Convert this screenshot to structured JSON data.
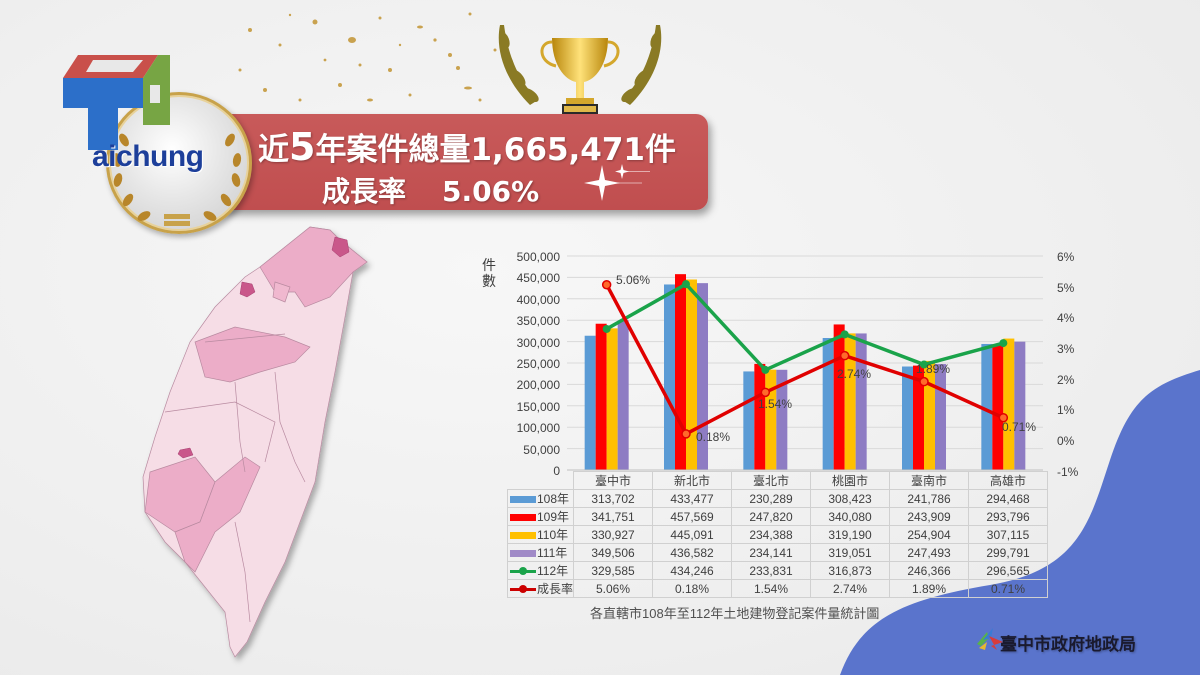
{
  "banner": {
    "line1_prefix": "近",
    "line1_number": "5",
    "line1_suffix": "年案件總量1,665,471件",
    "line2_label": "成長率",
    "line2_value": "5.06%"
  },
  "logo": {
    "text": "aichung"
  },
  "footer": {
    "organization": "臺中市政府地政局"
  },
  "colors": {
    "banner": "#c24f50",
    "y108": "#5b9bd5",
    "y109": "#ff0000",
    "y110": "#ffc000",
    "y111": "#8e7cc3",
    "y112": "#1aa34a",
    "growth": "#e00000",
    "wave": "#5a74cc"
  },
  "chart_data": {
    "type": "bar",
    "title": "各直轄市108年至112年土地建物登記案件量統計圖",
    "xlabel": "",
    "ylabel": "件數",
    "y2label": "",
    "categories": [
      "臺中市",
      "新北市",
      "臺北市",
      "桃園市",
      "臺南市",
      "高雄市"
    ],
    "ylim": [
      0,
      500000
    ],
    "yticks": [
      "0",
      "50,000",
      "100,000",
      "150,000",
      "200,000",
      "250,000",
      "300,000",
      "350,000",
      "400,000",
      "450,000",
      "500,000"
    ],
    "y2lim": [
      -0.01,
      0.06
    ],
    "y2ticks": [
      "-1%",
      "0%",
      "1%",
      "2%",
      "3%",
      "4%",
      "5%",
      "6%"
    ],
    "grid": true,
    "legend_position": "data-table",
    "series": [
      {
        "name": "108年",
        "type": "bar",
        "values": [
          313702,
          433477,
          230289,
          308423,
          241786,
          294468
        ],
        "display": [
          "313,702",
          "433,477",
          "230,289",
          "308,423",
          "241,786",
          "294,468"
        ]
      },
      {
        "name": "109年",
        "type": "bar",
        "values": [
          341751,
          457569,
          247820,
          340080,
          243909,
          293796
        ],
        "display": [
          "341,751",
          "457,569",
          "247,820",
          "340,080",
          "243,909",
          "293,796"
        ]
      },
      {
        "name": "110年",
        "type": "bar",
        "values": [
          330927,
          445091,
          234388,
          319190,
          254904,
          307115
        ],
        "display": [
          "330,927",
          "445,091",
          "234,388",
          "319,190",
          "254,904",
          "307,115"
        ]
      },
      {
        "name": "111年",
        "type": "bar",
        "values": [
          349506,
          436582,
          234141,
          319051,
          247493,
          299791
        ],
        "display": [
          "349,506",
          "436,582",
          "234,141",
          "319,051",
          "247,493",
          "299,791"
        ]
      },
      {
        "name": "112年",
        "type": "line",
        "axis": "left",
        "values": [
          329585,
          434246,
          233831,
          316873,
          246366,
          296565
        ],
        "display": [
          "329,585",
          "434,246",
          "233,831",
          "316,873",
          "246,366",
          "296,565"
        ]
      },
      {
        "name": "成長率",
        "type": "line",
        "axis": "right",
        "values": [
          5.06,
          0.18,
          1.54,
          2.74,
          1.89,
          0.71
        ],
        "display": [
          "5.06%",
          "0.18%",
          "1.54%",
          "2.74%",
          "1.89%",
          "0.71%"
        ]
      }
    ]
  }
}
